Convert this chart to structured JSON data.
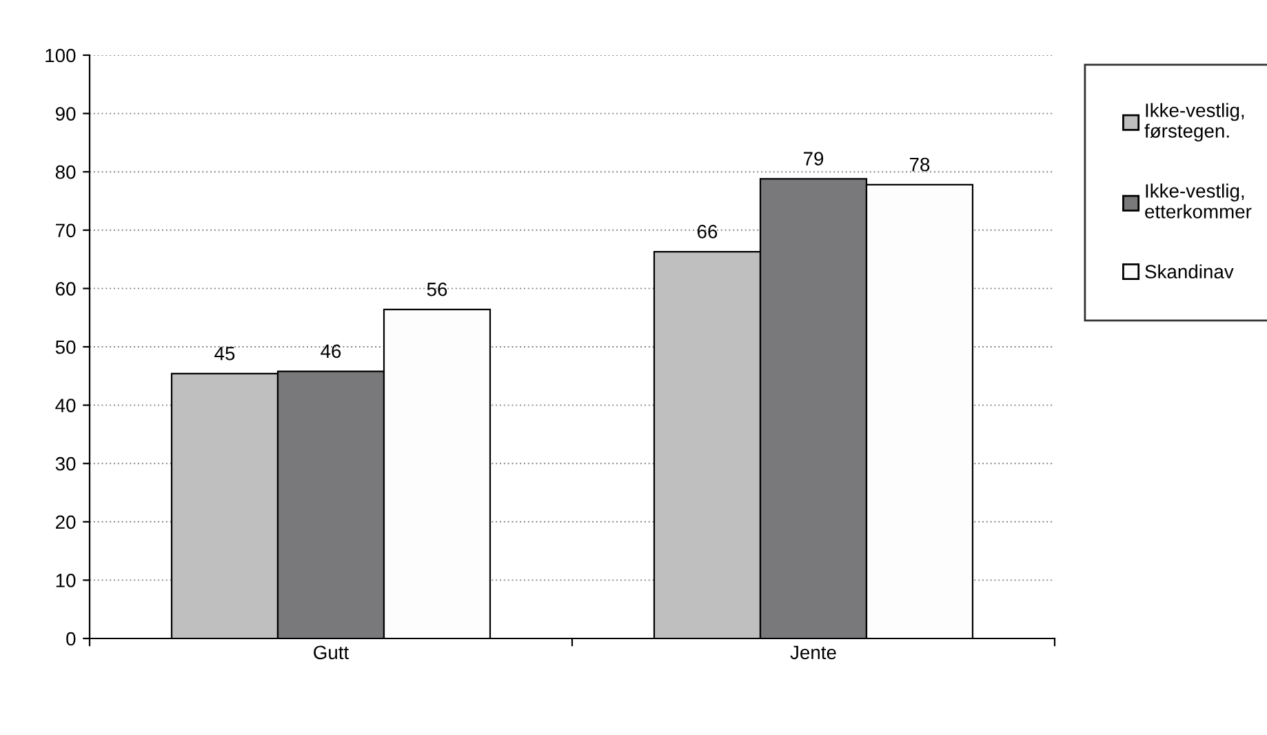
{
  "chart_data": {
    "type": "bar",
    "categories": [
      "Gutt",
      "Jente"
    ],
    "series": [
      {
        "name": "Ikke-vestlig,\nførstegen.",
        "color": "#bfbfbf",
        "values": [
          45.4,
          66.3
        ],
        "value_labels": [
          "45",
          "66"
        ]
      },
      {
        "name": "Ikke-vestlig,\netterkommer",
        "color": "#79797b",
        "values": [
          45.8,
          78.8
        ],
        "value_labels": [
          "46",
          "79"
        ]
      },
      {
        "name": "Skandinav",
        "color": "#fdfdfd",
        "values": [
          56.4,
          77.8
        ],
        "value_labels": [
          "56",
          "78"
        ]
      }
    ],
    "ylim": [
      0,
      100
    ],
    "yticks": [
      0,
      10,
      20,
      30,
      40,
      50,
      60,
      70,
      80,
      90,
      100
    ],
    "grid": "y",
    "legend": "right"
  }
}
